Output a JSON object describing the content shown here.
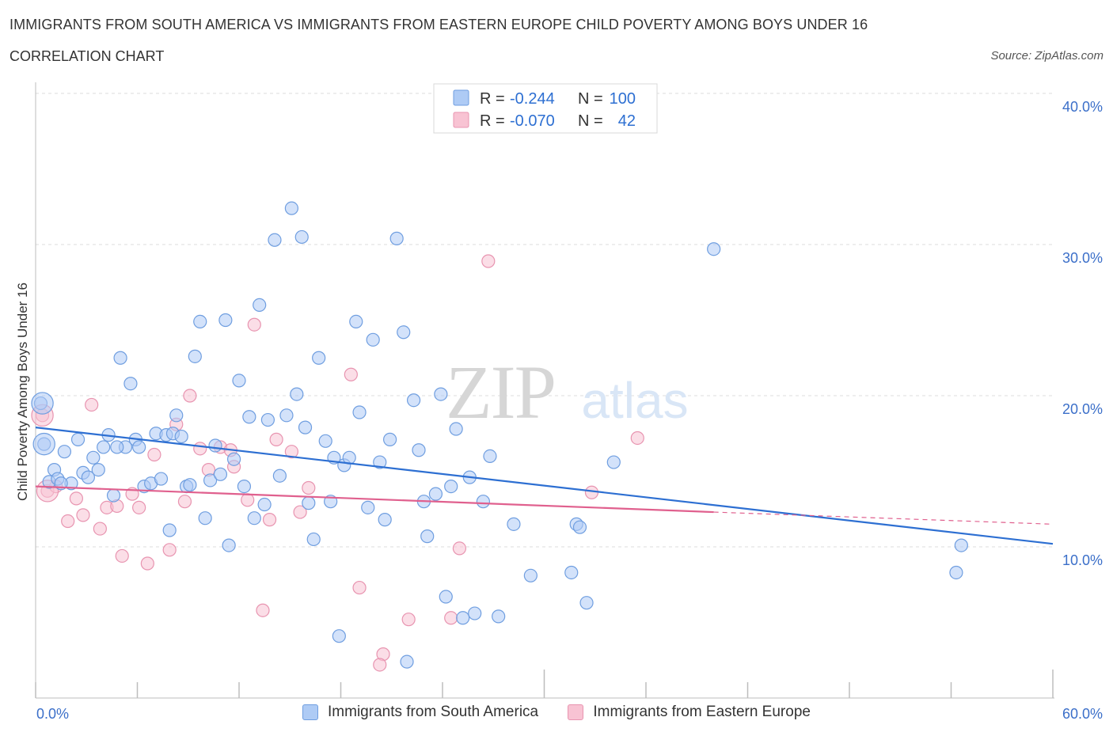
{
  "header": {
    "title": "IMMIGRANTS FROM SOUTH AMERICA VS IMMIGRANTS FROM EASTERN EUROPE CHILD POVERTY AMONG BOYS UNDER 16",
    "subtitle": "CORRELATION CHART",
    "source": "Source: ZipAtlas.com"
  },
  "watermark": {
    "zip": "ZIP",
    "atlas": "atlas"
  },
  "legend": {
    "r_label": "R =",
    "n_label": "N =",
    "entries": [
      {
        "r": "-0.244",
        "n": "100"
      },
      {
        "r": "-0.070",
        "n": "42"
      }
    ]
  },
  "chart_data": {
    "type": "scatter",
    "title": "IMMIGRANTS FROM SOUTH AMERICA VS IMMIGRANTS FROM EASTERN EUROPE CHILD POVERTY AMONG BOYS UNDER 16",
    "subtitle": "CORRELATION CHART",
    "xlabel": "",
    "ylabel": "Child Poverty Among Boys Under 16",
    "xlim": [
      0,
      60
    ],
    "ylim": [
      0,
      40
    ],
    "x_tick_labels": [
      "0.0%",
      "60.0%"
    ],
    "y_ticks": [
      10,
      20,
      30,
      40
    ],
    "y_tick_labels": [
      "10.0%",
      "20.0%",
      "30.0%",
      "40.0%"
    ],
    "grid": "dashed horizontal",
    "legend_position": "top-center",
    "colors": {
      "south_america_fill": "#aecbf5",
      "south_america_stroke": "#6f9ee0",
      "south_america_line": "#2d6fd2",
      "eastern_europe_fill": "#f8c3d3",
      "eastern_europe_stroke": "#e894b0",
      "eastern_europe_line": "#e0608e",
      "tick_label": "#3b6fc9"
    },
    "series": [
      {
        "name": "Immigrants from South America",
        "r": -0.244,
        "n": 100,
        "trend": {
          "x": [
            0,
            60
          ],
          "y": [
            17.9,
            10.2
          ]
        },
        "points": [
          [
            0.3,
            19.5
          ],
          [
            0.5,
            16.8
          ],
          [
            0.8,
            14.3
          ],
          [
            1.1,
            15.1
          ],
          [
            1.3,
            14.5
          ],
          [
            1.7,
            16.3
          ],
          [
            2.1,
            14.2
          ],
          [
            2.5,
            17.1
          ],
          [
            2.8,
            14.9
          ],
          [
            3.1,
            14.6
          ],
          [
            3.4,
            15.9
          ],
          [
            3.7,
            15.1
          ],
          [
            4.0,
            16.6
          ],
          [
            4.3,
            17.4
          ],
          [
            4.6,
            13.4
          ],
          [
            5.0,
            22.5
          ],
          [
            5.3,
            16.6
          ],
          [
            5.6,
            20.8
          ],
          [
            5.9,
            17.1
          ],
          [
            6.1,
            16.6
          ],
          [
            6.4,
            14.0
          ],
          [
            6.8,
            14.2
          ],
          [
            7.1,
            17.5
          ],
          [
            7.4,
            14.5
          ],
          [
            7.7,
            17.4
          ],
          [
            7.9,
            11.1
          ],
          [
            8.1,
            17.5
          ],
          [
            8.3,
            18.7
          ],
          [
            8.6,
            17.3
          ],
          [
            8.9,
            14.0
          ],
          [
            9.1,
            14.1
          ],
          [
            9.4,
            22.6
          ],
          [
            9.7,
            24.9
          ],
          [
            10.0,
            11.9
          ],
          [
            10.3,
            14.4
          ],
          [
            10.6,
            16.7
          ],
          [
            10.9,
            14.8
          ],
          [
            11.2,
            25.0
          ],
          [
            11.4,
            10.1
          ],
          [
            11.7,
            15.8
          ],
          [
            12.0,
            21.0
          ],
          [
            12.3,
            14.0
          ],
          [
            12.6,
            18.6
          ],
          [
            12.9,
            11.9
          ],
          [
            13.2,
            26.0
          ],
          [
            13.5,
            12.8
          ],
          [
            13.7,
            18.4
          ],
          [
            14.1,
            30.3
          ],
          [
            14.4,
            14.7
          ],
          [
            14.8,
            18.7
          ],
          [
            15.1,
            32.4
          ],
          [
            15.4,
            20.1
          ],
          [
            15.7,
            30.5
          ],
          [
            16.1,
            12.9
          ],
          [
            16.4,
            10.5
          ],
          [
            16.7,
            22.5
          ],
          [
            17.1,
            17.0
          ],
          [
            17.4,
            13.0
          ],
          [
            17.6,
            15.9
          ],
          [
            17.9,
            4.1
          ],
          [
            18.2,
            15.4
          ],
          [
            18.5,
            15.9
          ],
          [
            18.9,
            24.9
          ],
          [
            19.1,
            18.9
          ],
          [
            19.6,
            12.6
          ],
          [
            19.9,
            23.7
          ],
          [
            20.3,
            15.6
          ],
          [
            20.6,
            11.8
          ],
          [
            20.9,
            17.1
          ],
          [
            21.3,
            30.4
          ],
          [
            21.7,
            24.2
          ],
          [
            21.9,
            2.4
          ],
          [
            22.3,
            19.7
          ],
          [
            22.6,
            16.4
          ],
          [
            22.9,
            13.0
          ],
          [
            23.1,
            10.7
          ],
          [
            23.6,
            13.5
          ],
          [
            23.9,
            20.1
          ],
          [
            24.2,
            6.7
          ],
          [
            24.5,
            14.0
          ],
          [
            24.8,
            17.8
          ],
          [
            25.2,
            5.3
          ],
          [
            25.6,
            14.6
          ],
          [
            25.9,
            5.6
          ],
          [
            26.4,
            13.0
          ],
          [
            26.8,
            16.0
          ],
          [
            27.3,
            5.4
          ],
          [
            28.2,
            11.5
          ],
          [
            29.2,
            8.1
          ],
          [
            31.6,
            8.3
          ],
          [
            31.9,
            11.5
          ],
          [
            32.1,
            11.3
          ],
          [
            32.5,
            6.3
          ],
          [
            34.1,
            15.6
          ],
          [
            40.0,
            29.7
          ],
          [
            54.3,
            8.3
          ],
          [
            54.6,
            10.1
          ],
          [
            4.8,
            16.6
          ],
          [
            1.5,
            14.2
          ],
          [
            15.9,
            17.9
          ]
        ],
        "point_radius": 8,
        "large_points": [
          [
            0.4,
            19.5
          ],
          [
            0.5,
            16.8
          ]
        ]
      },
      {
        "name": "Immigrants from Eastern Europe",
        "r": -0.07,
        "n": 42,
        "trend": {
          "x": [
            0,
            40
          ],
          "y": [
            14.0,
            12.3
          ]
        },
        "trend_dashed_extension": {
          "x": [
            40,
            60
          ],
          "y": [
            12.3,
            11.5
          ]
        },
        "points": [
          [
            0.4,
            18.7
          ],
          [
            0.7,
            13.7
          ],
          [
            1.2,
            14.0
          ],
          [
            1.9,
            11.7
          ],
          [
            2.4,
            13.2
          ],
          [
            2.8,
            12.1
          ],
          [
            3.3,
            19.4
          ],
          [
            3.8,
            11.2
          ],
          [
            4.2,
            12.6
          ],
          [
            4.8,
            12.7
          ],
          [
            5.1,
            9.4
          ],
          [
            5.7,
            13.5
          ],
          [
            6.1,
            12.6
          ],
          [
            6.6,
            8.9
          ],
          [
            7.0,
            16.1
          ],
          [
            7.9,
            9.8
          ],
          [
            8.3,
            18.1
          ],
          [
            8.8,
            13.0
          ],
          [
            9.1,
            20.0
          ],
          [
            9.7,
            16.5
          ],
          [
            10.2,
            15.1
          ],
          [
            10.9,
            16.6
          ],
          [
            11.5,
            16.4
          ],
          [
            11.7,
            15.3
          ],
          [
            12.5,
            13.1
          ],
          [
            12.9,
            24.7
          ],
          [
            13.4,
            5.8
          ],
          [
            13.8,
            11.8
          ],
          [
            14.2,
            17.1
          ],
          [
            15.1,
            16.3
          ],
          [
            15.6,
            12.3
          ],
          [
            16.1,
            13.9
          ],
          [
            18.6,
            21.4
          ],
          [
            19.1,
            7.3
          ],
          [
            20.5,
            2.9
          ],
          [
            22.0,
            5.2
          ],
          [
            24.5,
            5.3
          ],
          [
            25.0,
            9.9
          ],
          [
            26.7,
            28.9
          ],
          [
            32.8,
            13.6
          ],
          [
            35.5,
            17.2
          ],
          [
            20.3,
            2.2
          ]
        ],
        "point_radius": 8,
        "large_points": [
          [
            0.4,
            18.7
          ],
          [
            0.7,
            13.7
          ]
        ]
      }
    ]
  }
}
